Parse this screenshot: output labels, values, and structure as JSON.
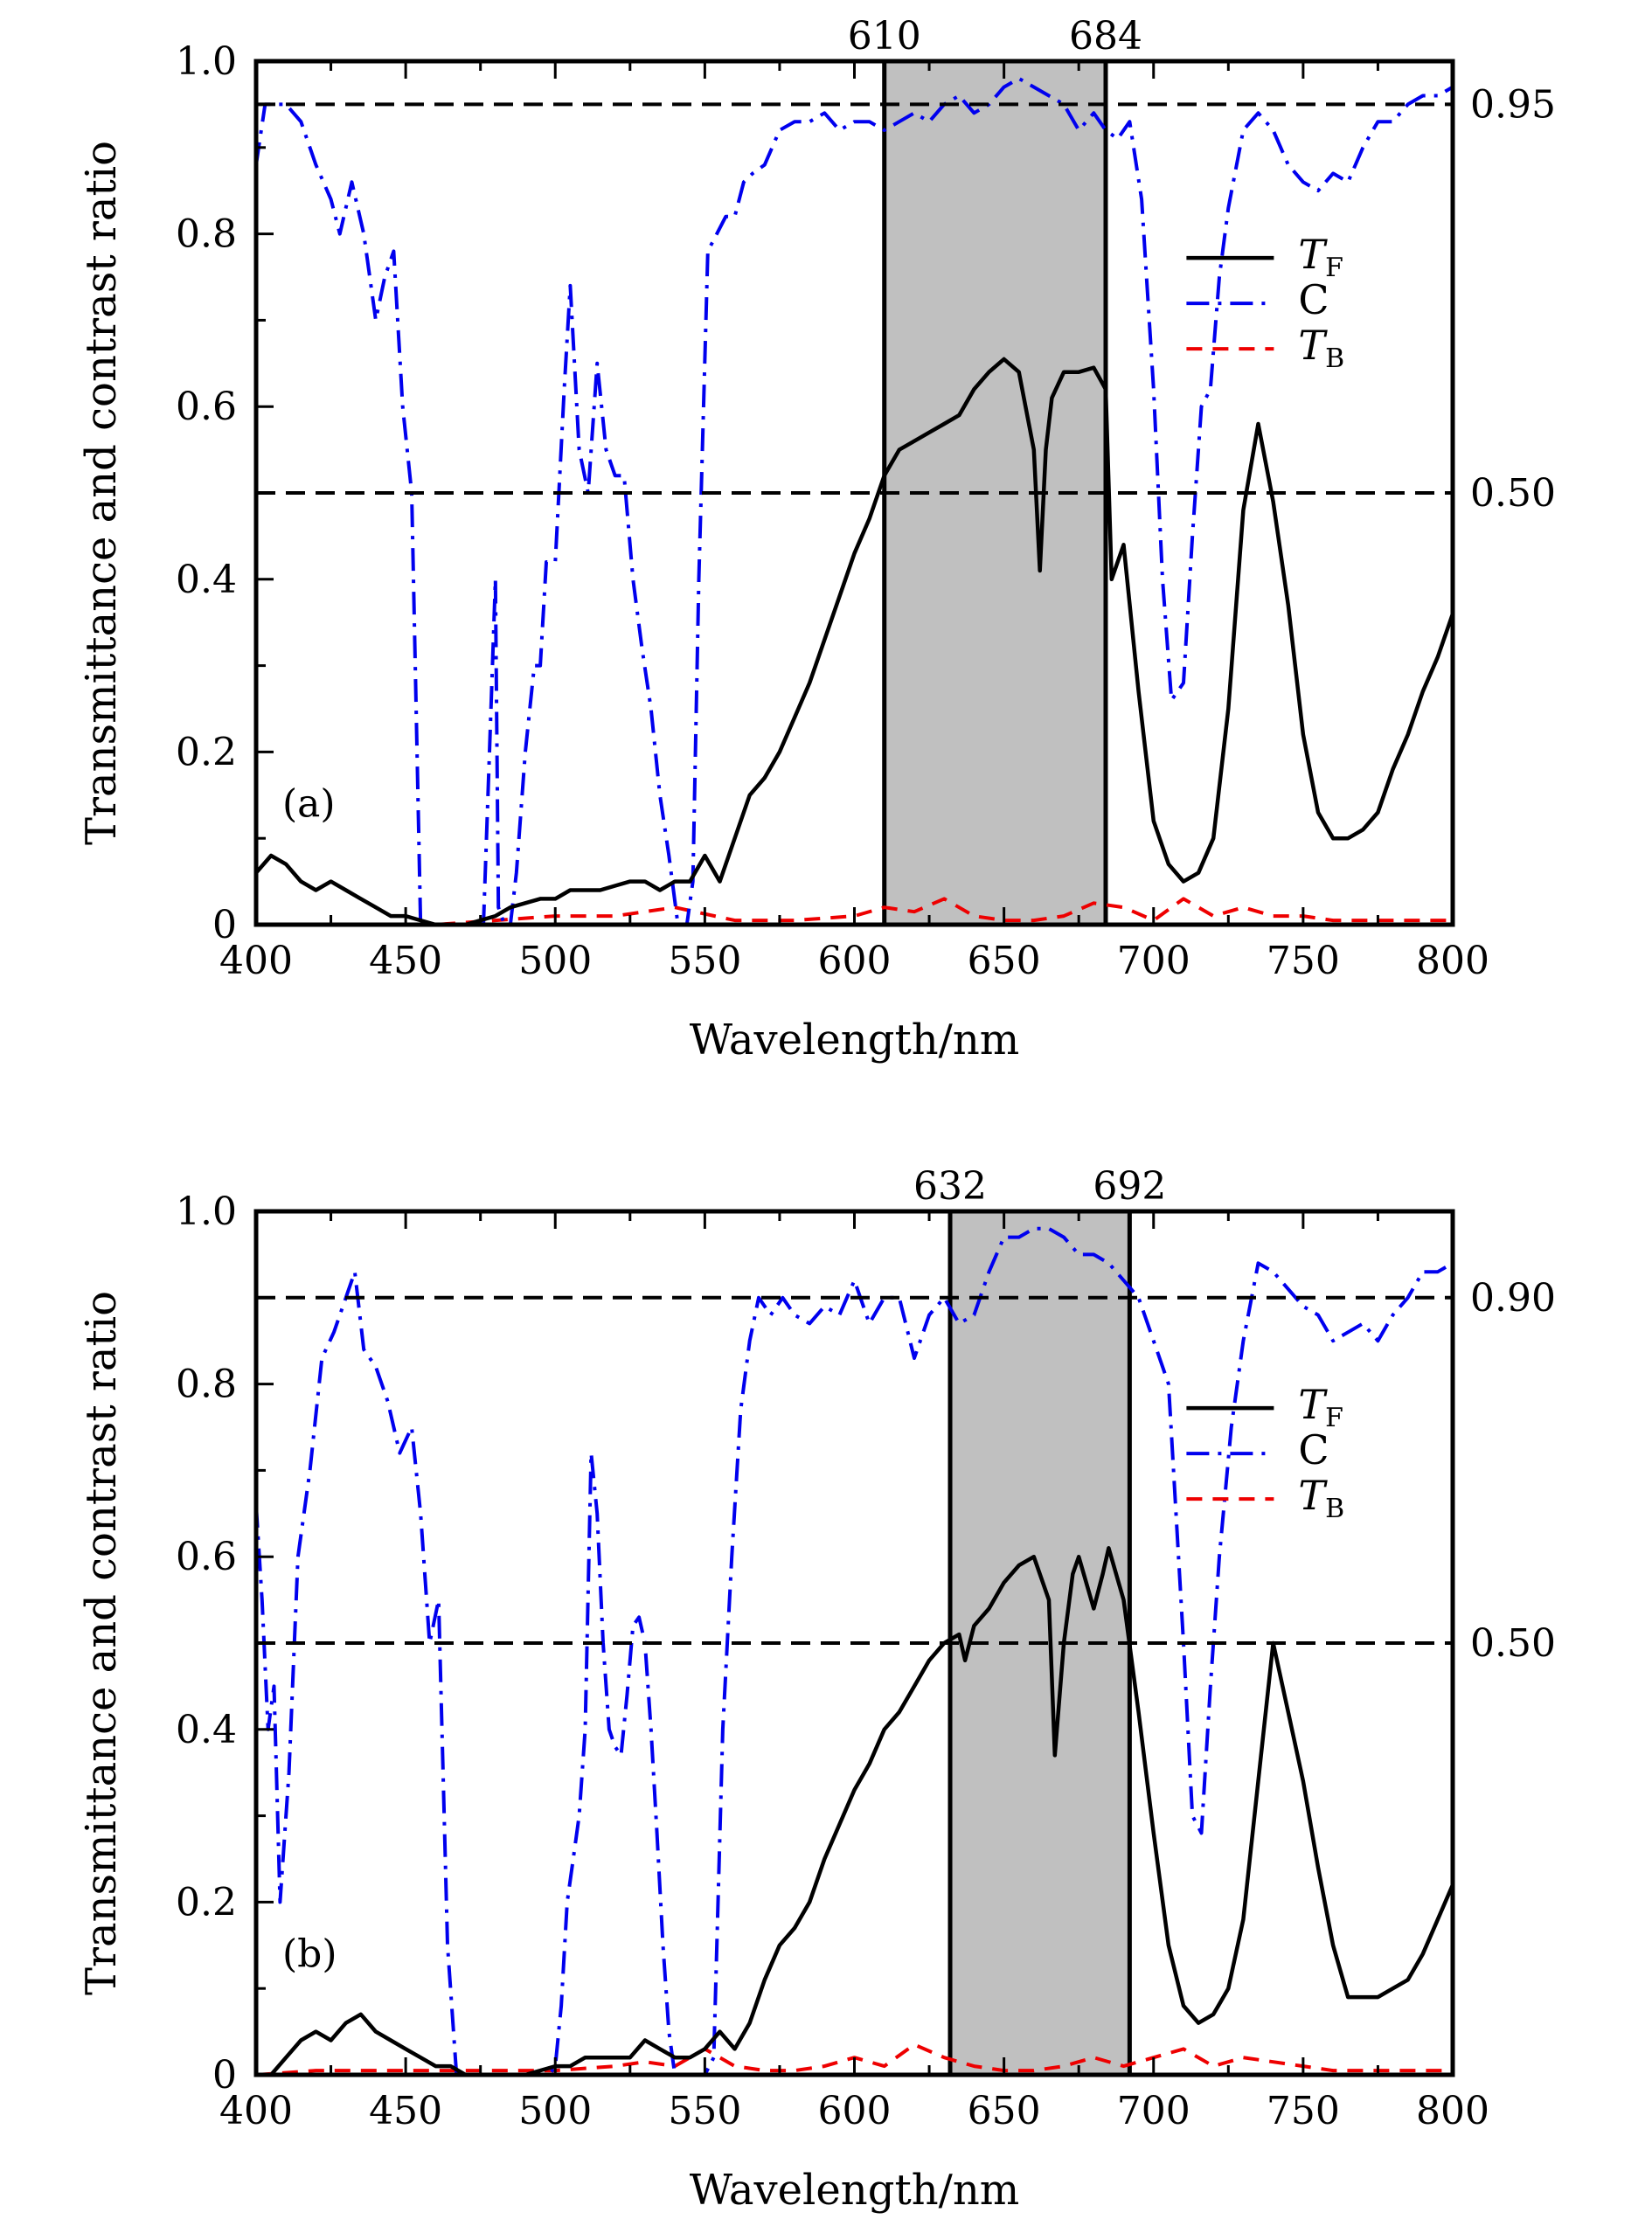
{
  "figure": {
    "ylabel": "Transmittance and contrast ratio",
    "xlabel": "Wavelength/nm"
  },
  "chart_data": [
    {
      "type": "line",
      "panel_label": "(a)",
      "xlabel": "Wavelength/nm",
      "ylabel": "Transmittance and contrast ratio",
      "xlim": [
        400,
        800
      ],
      "ylim": [
        0,
        1.0
      ],
      "x_ticks": [
        "400",
        "450",
        "500",
        "550",
        "600",
        "650",
        "700",
        "750",
        "800"
      ],
      "y_ticks": [
        "0",
        "0.2",
        "0.4",
        "0.6",
        "0.8",
        "1.0"
      ],
      "right_labels": [
        {
          "value": 0.95,
          "text": "0.95"
        },
        {
          "value": 0.5,
          "text": "0.50"
        }
      ],
      "band": {
        "from": 610,
        "to": 684,
        "from_label": "610",
        "to_label": "684"
      },
      "legend": {
        "position": "right",
        "entries": [
          {
            "main": "T",
            "sub": "F",
            "italic": true,
            "style": "solid",
            "color": "#000000"
          },
          {
            "main": "C",
            "sub": "",
            "italic": false,
            "style": "dashdot",
            "color": "#0000ee"
          },
          {
            "main": "T",
            "sub": "B",
            "italic": true,
            "style": "dashed",
            "color": "#ee0000"
          }
        ]
      },
      "series": [
        {
          "name": "TF",
          "x": [
            400,
            405,
            410,
            415,
            420,
            425,
            430,
            435,
            440,
            445,
            450,
            455,
            460,
            465,
            470,
            475,
            480,
            485,
            490,
            495,
            500,
            505,
            510,
            515,
            520,
            525,
            530,
            535,
            540,
            545,
            550,
            555,
            560,
            565,
            570,
            575,
            580,
            585,
            590,
            595,
            600,
            605,
            610,
            615,
            620,
            625,
            630,
            635,
            640,
            645,
            650,
            655,
            660,
            662,
            664,
            666,
            670,
            675,
            680,
            684,
            686,
            690,
            695,
            700,
            705,
            710,
            715,
            720,
            725,
            730,
            735,
            740,
            745,
            750,
            755,
            760,
            765,
            770,
            775,
            780,
            785,
            790,
            795,
            800
          ],
          "y": [
            0.06,
            0.08,
            0.07,
            0.05,
            0.04,
            0.05,
            0.04,
            0.03,
            0.02,
            0.01,
            0.01,
            0.005,
            0.0,
            0.0,
            0.0,
            0.005,
            0.01,
            0.02,
            0.025,
            0.03,
            0.03,
            0.04,
            0.04,
            0.04,
            0.045,
            0.05,
            0.05,
            0.04,
            0.05,
            0.05,
            0.08,
            0.05,
            0.1,
            0.15,
            0.17,
            0.2,
            0.24,
            0.28,
            0.33,
            0.38,
            0.43,
            0.47,
            0.52,
            0.55,
            0.56,
            0.57,
            0.58,
            0.59,
            0.62,
            0.64,
            0.655,
            0.64,
            0.55,
            0.41,
            0.55,
            0.61,
            0.64,
            0.64,
            0.645,
            0.62,
            0.4,
            0.44,
            0.27,
            0.12,
            0.07,
            0.05,
            0.06,
            0.1,
            0.25,
            0.48,
            0.58,
            0.49,
            0.37,
            0.22,
            0.13,
            0.1,
            0.1,
            0.11,
            0.13,
            0.18,
            0.22,
            0.27,
            0.31,
            0.36
          ]
        },
        {
          "name": "C",
          "x": [
            400,
            403,
            406,
            410,
            415,
            420,
            425,
            428,
            432,
            436,
            440,
            443,
            446,
            449,
            452,
            455,
            458,
            461,
            464,
            467,
            470,
            473,
            476,
            478,
            480,
            481,
            483,
            485,
            487,
            490,
            493,
            495,
            497,
            500,
            503,
            505,
            508,
            511,
            514,
            517,
            520,
            523,
            526,
            529,
            532,
            535,
            538,
            541,
            544,
            546,
            548,
            551,
            554,
            557,
            560,
            563,
            566,
            570,
            575,
            580,
            585,
            590,
            595,
            600,
            605,
            610,
            615,
            620,
            625,
            630,
            635,
            640,
            645,
            650,
            655,
            660,
            665,
            670,
            675,
            680,
            684,
            688,
            692,
            696,
            700,
            703,
            706,
            710,
            713,
            716,
            719,
            722,
            725,
            730,
            735,
            740,
            745,
            750,
            755,
            760,
            765,
            770,
            775,
            780,
            785,
            790,
            795,
            800
          ],
          "y": [
            0.88,
            0.95,
            0.95,
            0.95,
            0.93,
            0.88,
            0.84,
            0.8,
            0.86,
            0.8,
            0.7,
            0.75,
            0.78,
            0.6,
            0.5,
            0.0,
            0.0,
            0.0,
            0.0,
            0.0,
            0.0,
            0.0,
            0.0,
            0.2,
            0.4,
            0.02,
            0.0,
            0.0,
            0.06,
            0.2,
            0.3,
            0.3,
            0.42,
            0.42,
            0.62,
            0.74,
            0.55,
            0.5,
            0.65,
            0.55,
            0.52,
            0.52,
            0.4,
            0.32,
            0.25,
            0.15,
            0.08,
            0.0,
            0.0,
            0.05,
            0.4,
            0.78,
            0.8,
            0.82,
            0.82,
            0.86,
            0.87,
            0.88,
            0.92,
            0.93,
            0.93,
            0.94,
            0.92,
            0.93,
            0.93,
            0.92,
            0.93,
            0.94,
            0.93,
            0.95,
            0.96,
            0.94,
            0.95,
            0.97,
            0.98,
            0.97,
            0.96,
            0.95,
            0.92,
            0.94,
            0.92,
            0.91,
            0.93,
            0.84,
            0.62,
            0.4,
            0.26,
            0.28,
            0.45,
            0.6,
            0.62,
            0.75,
            0.83,
            0.92,
            0.94,
            0.92,
            0.88,
            0.86,
            0.85,
            0.87,
            0.86,
            0.9,
            0.93,
            0.93,
            0.95,
            0.96,
            0.96,
            0.97
          ]
        },
        {
          "name": "TB",
          "x": [
            400,
            420,
            440,
            460,
            480,
            500,
            520,
            540,
            560,
            580,
            600,
            610,
            620,
            630,
            640,
            650,
            660,
            670,
            680,
            690,
            700,
            710,
            720,
            730,
            740,
            750,
            760,
            770,
            780,
            790,
            800
          ],
          "y": [
            0.0,
            0.0,
            0.0,
            0.0,
            0.005,
            0.01,
            0.01,
            0.02,
            0.005,
            0.005,
            0.01,
            0.02,
            0.015,
            0.03,
            0.01,
            0.005,
            0.005,
            0.01,
            0.025,
            0.02,
            0.005,
            0.03,
            0.01,
            0.02,
            0.01,
            0.01,
            0.005,
            0.005,
            0.005,
            0.005,
            0.005
          ]
        }
      ]
    },
    {
      "type": "line",
      "panel_label": "(b)",
      "xlabel": "Wavelength/nm",
      "ylabel": "Transmittance and contrast ratio",
      "xlim": [
        400,
        800
      ],
      "ylim": [
        0,
        1.0
      ],
      "x_ticks": [
        "400",
        "450",
        "500",
        "550",
        "600",
        "650",
        "700",
        "750",
        "800"
      ],
      "y_ticks": [
        "0",
        "0.2",
        "0.4",
        "0.6",
        "0.8",
        "1.0"
      ],
      "right_labels": [
        {
          "value": 0.9,
          "text": "0.90"
        },
        {
          "value": 0.5,
          "text": "0.50"
        }
      ],
      "band": {
        "from": 632,
        "to": 692,
        "from_label": "632",
        "to_label": "692"
      },
      "legend": {
        "position": "right",
        "entries": [
          {
            "main": "T",
            "sub": "F",
            "italic": true,
            "style": "solid",
            "color": "#000000"
          },
          {
            "main": "C",
            "sub": "",
            "italic": false,
            "style": "dashdot",
            "color": "#0000ee"
          },
          {
            "main": "T",
            "sub": "B",
            "italic": true,
            "style": "dashed",
            "color": "#ee0000"
          }
        ]
      },
      "series": [
        {
          "name": "TF",
          "x": [
            400,
            405,
            410,
            415,
            420,
            425,
            430,
            435,
            440,
            445,
            450,
            455,
            460,
            465,
            470,
            480,
            490,
            500,
            505,
            510,
            515,
            520,
            525,
            530,
            535,
            540,
            545,
            550,
            555,
            560,
            565,
            570,
            575,
            580,
            585,
            590,
            595,
            600,
            605,
            610,
            615,
            620,
            625,
            630,
            635,
            637,
            640,
            645,
            650,
            655,
            660,
            665,
            667,
            670,
            673,
            675,
            680,
            683,
            685,
            690,
            695,
            700,
            705,
            710,
            715,
            720,
            725,
            730,
            735,
            740,
            745,
            750,
            755,
            760,
            765,
            770,
            775,
            780,
            785,
            790,
            795,
            800
          ],
          "y": [
            0.0,
            0.0,
            0.02,
            0.04,
            0.05,
            0.04,
            0.06,
            0.07,
            0.05,
            0.04,
            0.03,
            0.02,
            0.01,
            0.01,
            0.0,
            0.0,
            0.0,
            0.01,
            0.01,
            0.02,
            0.02,
            0.02,
            0.02,
            0.04,
            0.03,
            0.02,
            0.02,
            0.03,
            0.05,
            0.03,
            0.06,
            0.11,
            0.15,
            0.17,
            0.2,
            0.25,
            0.29,
            0.33,
            0.36,
            0.4,
            0.42,
            0.45,
            0.48,
            0.5,
            0.51,
            0.48,
            0.52,
            0.54,
            0.57,
            0.59,
            0.6,
            0.55,
            0.37,
            0.5,
            0.58,
            0.6,
            0.54,
            0.58,
            0.61,
            0.55,
            0.42,
            0.28,
            0.15,
            0.08,
            0.06,
            0.07,
            0.1,
            0.18,
            0.34,
            0.5,
            0.42,
            0.34,
            0.24,
            0.15,
            0.09,
            0.09,
            0.09,
            0.1,
            0.11,
            0.14,
            0.18,
            0.22
          ]
        },
        {
          "name": "C",
          "x": [
            400,
            402,
            404,
            406,
            408,
            411,
            414,
            418,
            422,
            426,
            430,
            433,
            436,
            440,
            444,
            448,
            452,
            455,
            458,
            461,
            464,
            467,
            470,
            472,
            474,
            476,
            480,
            490,
            498,
            500,
            502,
            504,
            506,
            508,
            510,
            512,
            514,
            516,
            518,
            520,
            522,
            524,
            526,
            528,
            530,
            532,
            534,
            536,
            538,
            540,
            545,
            550,
            553,
            556,
            559,
            562,
            565,
            568,
            572,
            576,
            580,
            585,
            590,
            595,
            600,
            605,
            610,
            615,
            620,
            625,
            630,
            635,
            640,
            645,
            650,
            655,
            660,
            665,
            670,
            675,
            680,
            685,
            690,
            695,
            700,
            705,
            710,
            713,
            716,
            719,
            722,
            726,
            730,
            735,
            740,
            745,
            750,
            755,
            760,
            765,
            770,
            775,
            780,
            785,
            790,
            795,
            800
          ],
          "y": [
            0.66,
            0.55,
            0.4,
            0.45,
            0.2,
            0.35,
            0.6,
            0.7,
            0.83,
            0.86,
            0.9,
            0.93,
            0.84,
            0.82,
            0.78,
            0.72,
            0.75,
            0.65,
            0.5,
            0.55,
            0.15,
            0.0,
            0.0,
            0.0,
            0.0,
            0.0,
            0.0,
            0.0,
            0.0,
            0.01,
            0.08,
            0.2,
            0.25,
            0.3,
            0.4,
            0.72,
            0.65,
            0.5,
            0.4,
            0.38,
            0.37,
            0.44,
            0.52,
            0.53,
            0.5,
            0.4,
            0.28,
            0.15,
            0.05,
            0.0,
            0.0,
            0.0,
            0.02,
            0.4,
            0.6,
            0.77,
            0.85,
            0.9,
            0.88,
            0.9,
            0.88,
            0.87,
            0.89,
            0.88,
            0.92,
            0.87,
            0.9,
            0.9,
            0.83,
            0.88,
            0.9,
            0.87,
            0.88,
            0.93,
            0.97,
            0.97,
            0.98,
            0.98,
            0.97,
            0.95,
            0.95,
            0.94,
            0.92,
            0.9,
            0.85,
            0.8,
            0.5,
            0.3,
            0.28,
            0.45,
            0.6,
            0.75,
            0.85,
            0.94,
            0.93,
            0.91,
            0.89,
            0.88,
            0.85,
            0.86,
            0.87,
            0.85,
            0.88,
            0.9,
            0.93,
            0.93,
            0.94
          ]
        },
        {
          "name": "TB",
          "x": [
            400,
            420,
            440,
            460,
            480,
            500,
            520,
            530,
            540,
            550,
            560,
            570,
            580,
            590,
            600,
            610,
            620,
            630,
            640,
            650,
            660,
            670,
            680,
            690,
            700,
            710,
            720,
            730,
            740,
            750,
            760,
            770,
            780,
            790,
            800
          ],
          "y": [
            0.0,
            0.005,
            0.005,
            0.005,
            0.005,
            0.005,
            0.01,
            0.015,
            0.01,
            0.03,
            0.01,
            0.005,
            0.005,
            0.01,
            0.02,
            0.01,
            0.035,
            0.02,
            0.01,
            0.005,
            0.005,
            0.01,
            0.02,
            0.01,
            0.02,
            0.03,
            0.01,
            0.02,
            0.015,
            0.01,
            0.005,
            0.005,
            0.005,
            0.005,
            0.005
          ]
        }
      ]
    }
  ]
}
